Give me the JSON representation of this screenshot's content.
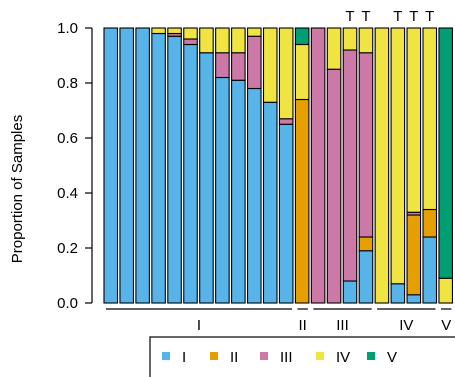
{
  "chart_data": {
    "type": "bar",
    "stacked": true,
    "ylabel": "Proportion of Samples",
    "ylim": [
      0,
      1
    ],
    "yticks": [
      "0.0",
      "0.2",
      "0.4",
      "0.6",
      "0.8",
      "1.0"
    ],
    "components": [
      {
        "name": "I",
        "color": "#56B4E9"
      },
      {
        "name": "II",
        "color": "#E69F00"
      },
      {
        "name": "III",
        "color": "#CC79A7"
      },
      {
        "name": "IV",
        "color": "#F0E442"
      },
      {
        "name": "V",
        "color": "#009E73"
      }
    ],
    "bars": [
      {
        "values": [
          1.0,
          0,
          0,
          0,
          0
        ]
      },
      {
        "values": [
          1.0,
          0,
          0,
          0,
          0
        ]
      },
      {
        "values": [
          1.0,
          0,
          0,
          0,
          0
        ]
      },
      {
        "values": [
          0.98,
          0,
          0,
          0.02,
          0
        ]
      },
      {
        "values": [
          0.97,
          0,
          0.01,
          0.02,
          0
        ]
      },
      {
        "values": [
          0.94,
          0,
          0.02,
          0.04,
          0
        ]
      },
      {
        "values": [
          0.91,
          0,
          0,
          0.09,
          0
        ]
      },
      {
        "values": [
          0.82,
          0,
          0.09,
          0.09,
          0
        ]
      },
      {
        "values": [
          0.81,
          0,
          0.1,
          0.09,
          0
        ]
      },
      {
        "values": [
          0.78,
          0,
          0.19,
          0.03,
          0
        ]
      },
      {
        "values": [
          0.73,
          0,
          0,
          0.27,
          0
        ]
      },
      {
        "values": [
          0.65,
          0,
          0.02,
          0.33,
          0
        ]
      },
      {
        "values": [
          0,
          0.74,
          0,
          0.2,
          0.06
        ]
      },
      {
        "values": [
          0,
          0,
          1.0,
          0,
          0
        ]
      },
      {
        "values": [
          0,
          0,
          0.85,
          0.15,
          0
        ]
      },
      {
        "values": [
          0.08,
          0,
          0.84,
          0.08,
          0
        ]
      },
      {
        "values": [
          0.19,
          0.05,
          0.67,
          0.09,
          0
        ]
      },
      {
        "values": [
          0,
          0,
          0,
          1.0,
          0
        ]
      },
      {
        "values": [
          0.07,
          0,
          0,
          0.93,
          0
        ]
      },
      {
        "values": [
          0.03,
          0.29,
          0.01,
          0.67,
          0
        ]
      },
      {
        "values": [
          0.24,
          0.1,
          0,
          0.66,
          0
        ]
      },
      {
        "values": [
          0,
          0,
          0,
          0.09,
          0.91
        ]
      }
    ],
    "top_markers": [
      {
        "bar": 15,
        "label": "T"
      },
      {
        "bar": 16,
        "label": "T"
      },
      {
        "bar": 18,
        "label": "T"
      },
      {
        "bar": 19,
        "label": "T"
      },
      {
        "bar": 20,
        "label": "T"
      }
    ],
    "groups": [
      {
        "label": "I",
        "first_bar": 0,
        "last_bar": 11
      },
      {
        "label": "II",
        "first_bar": 12,
        "last_bar": 12
      },
      {
        "label": "III",
        "first_bar": 13,
        "last_bar": 16
      },
      {
        "label": "IV",
        "first_bar": 17,
        "last_bar": 20
      },
      {
        "label": "V",
        "first_bar": 21,
        "last_bar": 21
      }
    ],
    "legend": {
      "position": "bottom",
      "entries": [
        "I",
        "II",
        "III",
        "IV",
        "V"
      ]
    }
  }
}
